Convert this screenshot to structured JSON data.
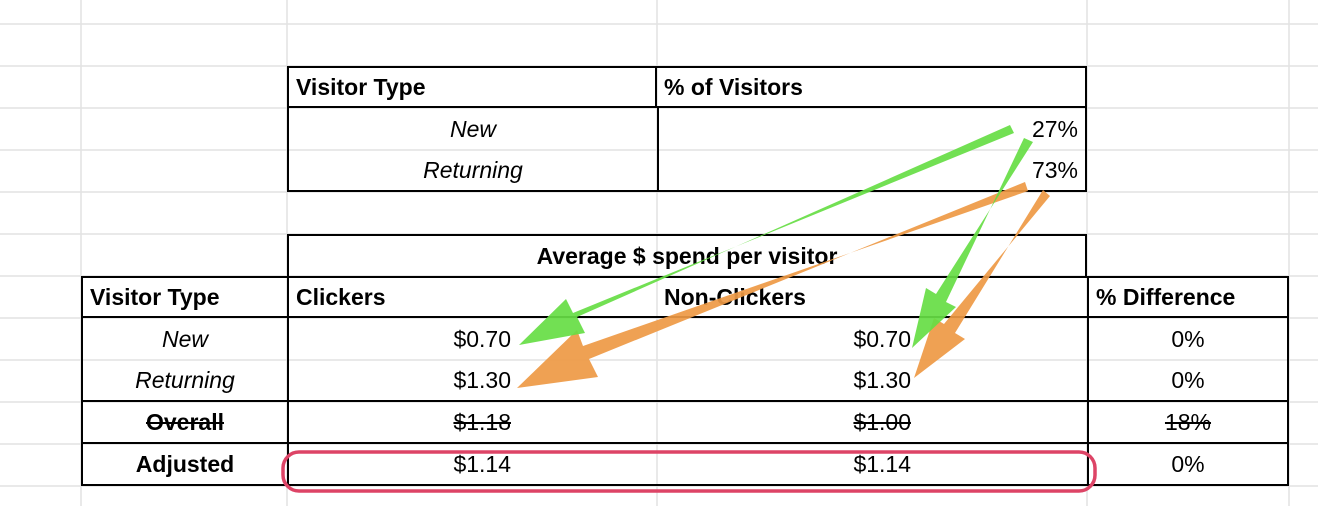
{
  "table1": {
    "header": {
      "visitor_type": "Visitor Type",
      "pct_visitors": "% of Visitors"
    },
    "rows": [
      {
        "type": "New",
        "pct": "27%"
      },
      {
        "type": "Returning",
        "pct": "73%"
      }
    ]
  },
  "table2": {
    "group_header": "Average $ spend per visitor",
    "headers": {
      "visitor_type": "Visitor Type",
      "clickers": "Clickers",
      "non_clickers": "Non-Clickers",
      "pct_difference": "% Difference"
    },
    "rows": [
      {
        "type": "New",
        "clickers": "$0.70",
        "non_clickers": "$0.70",
        "diff": "0%"
      },
      {
        "type": "Returning",
        "clickers": "$1.30",
        "non_clickers": "$1.30",
        "diff": "0%"
      },
      {
        "type": "Overall",
        "clickers": "$1.18",
        "non_clickers": "$1.00",
        "diff": "18%"
      },
      {
        "type": "Adjusted",
        "clickers": "$1.14",
        "non_clickers": "$1.14",
        "diff": "0%"
      }
    ]
  },
  "annotations": {
    "arrow_new_color": "#66dd44",
    "arrow_returning_color": "#ee9944",
    "highlight_color": "#dd4466"
  }
}
